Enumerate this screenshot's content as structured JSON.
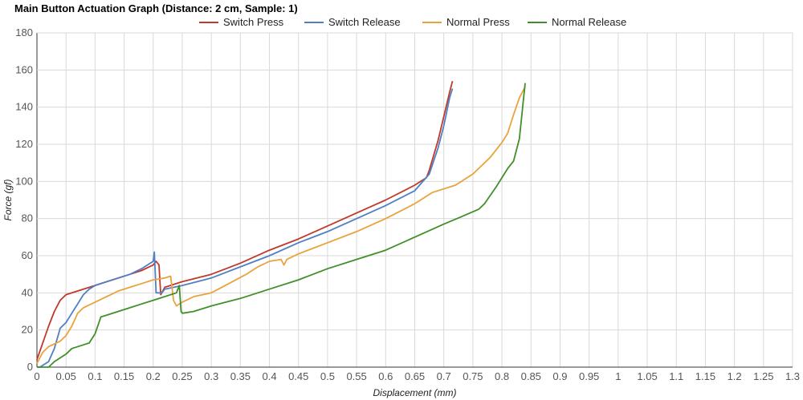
{
  "chart_data": {
    "type": "line",
    "title": "Main Button Actuation Graph (Distance: 2 cm, Sample: 1)",
    "xlabel": "Displacement (mm)",
    "ylabel": "Force (gf)",
    "xlim": [
      0,
      1.3
    ],
    "ylim": [
      0,
      180
    ],
    "x_ticks": [
      0,
      0.05,
      0.1,
      0.15,
      0.2,
      0.25,
      0.3,
      0.35,
      0.4,
      0.45,
      0.5,
      0.55,
      0.6,
      0.65,
      0.7,
      0.75,
      0.8,
      0.85,
      0.9,
      0.95,
      1.0,
      1.05,
      1.1,
      1.15,
      1.2,
      1.25,
      1.3
    ],
    "y_ticks": [
      0,
      20,
      40,
      60,
      80,
      100,
      120,
      140,
      160,
      180
    ],
    "grid": true,
    "legend_position": "top",
    "series": [
      {
        "name": "Switch Press",
        "color": "#c0392b",
        "points": [
          [
            0.0,
            4
          ],
          [
            0.01,
            13
          ],
          [
            0.02,
            22
          ],
          [
            0.03,
            30
          ],
          [
            0.04,
            36
          ],
          [
            0.05,
            39
          ],
          [
            0.07,
            41
          ],
          [
            0.1,
            44
          ],
          [
            0.13,
            47
          ],
          [
            0.16,
            50
          ],
          [
            0.18,
            52
          ],
          [
            0.2,
            55
          ],
          [
            0.205,
            57
          ],
          [
            0.21,
            55
          ],
          [
            0.212,
            44
          ],
          [
            0.213,
            39
          ],
          [
            0.22,
            43
          ],
          [
            0.25,
            46
          ],
          [
            0.3,
            50
          ],
          [
            0.35,
            56
          ],
          [
            0.4,
            63
          ],
          [
            0.45,
            69
          ],
          [
            0.5,
            76
          ],
          [
            0.55,
            83
          ],
          [
            0.6,
            90
          ],
          [
            0.65,
            98
          ],
          [
            0.67,
            102
          ],
          [
            0.675,
            106
          ],
          [
            0.69,
            122
          ],
          [
            0.7,
            135
          ],
          [
            0.71,
            148
          ],
          [
            0.715,
            154
          ]
        ]
      },
      {
        "name": "Switch Release",
        "color": "#4f7fc4",
        "points": [
          [
            0.0,
            0
          ],
          [
            0.005,
            0
          ],
          [
            0.01,
            1
          ],
          [
            0.02,
            3
          ],
          [
            0.03,
            10
          ],
          [
            0.04,
            21
          ],
          [
            0.05,
            24
          ],
          [
            0.06,
            29
          ],
          [
            0.07,
            34
          ],
          [
            0.08,
            39
          ],
          [
            0.09,
            42
          ],
          [
            0.1,
            44
          ],
          [
            0.12,
            46
          ],
          [
            0.14,
            48
          ],
          [
            0.16,
            50
          ],
          [
            0.18,
            53
          ],
          [
            0.195,
            56
          ],
          [
            0.2,
            57
          ],
          [
            0.202,
            62
          ],
          [
            0.205,
            40
          ],
          [
            0.215,
            40
          ],
          [
            0.22,
            42
          ],
          [
            0.25,
            44
          ],
          [
            0.3,
            48
          ],
          [
            0.35,
            54
          ],
          [
            0.4,
            60
          ],
          [
            0.45,
            67
          ],
          [
            0.5,
            73
          ],
          [
            0.55,
            80
          ],
          [
            0.6,
            87
          ],
          [
            0.65,
            95
          ],
          [
            0.675,
            104
          ],
          [
            0.69,
            118
          ],
          [
            0.7,
            130
          ],
          [
            0.71,
            145
          ],
          [
            0.715,
            150
          ]
        ]
      },
      {
        "name": "Normal Press",
        "color": "#e8a33d",
        "points": [
          [
            0.0,
            2
          ],
          [
            0.01,
            8
          ],
          [
            0.02,
            11
          ],
          [
            0.04,
            14
          ],
          [
            0.05,
            17
          ],
          [
            0.06,
            22
          ],
          [
            0.07,
            29
          ],
          [
            0.08,
            32
          ],
          [
            0.1,
            35
          ],
          [
            0.12,
            38
          ],
          [
            0.14,
            41
          ],
          [
            0.16,
            43
          ],
          [
            0.18,
            45
          ],
          [
            0.2,
            47
          ],
          [
            0.22,
            48
          ],
          [
            0.23,
            49
          ],
          [
            0.235,
            36
          ],
          [
            0.24,
            33
          ],
          [
            0.25,
            35
          ],
          [
            0.27,
            38
          ],
          [
            0.3,
            40
          ],
          [
            0.33,
            45
          ],
          [
            0.36,
            50
          ],
          [
            0.38,
            54
          ],
          [
            0.4,
            57
          ],
          [
            0.42,
            58
          ],
          [
            0.425,
            55
          ],
          [
            0.43,
            58
          ],
          [
            0.45,
            61
          ],
          [
            0.5,
            67
          ],
          [
            0.55,
            73
          ],
          [
            0.6,
            80
          ],
          [
            0.65,
            88
          ],
          [
            0.68,
            94
          ],
          [
            0.72,
            98
          ],
          [
            0.75,
            104
          ],
          [
            0.78,
            113
          ],
          [
            0.8,
            121
          ],
          [
            0.81,
            126
          ],
          [
            0.82,
            136
          ],
          [
            0.83,
            145
          ],
          [
            0.84,
            151
          ]
        ]
      },
      {
        "name": "Normal Release",
        "color": "#3f8f2b",
        "points": [
          [
            0.0,
            0
          ],
          [
            0.02,
            0
          ],
          [
            0.03,
            3
          ],
          [
            0.05,
            7
          ],
          [
            0.06,
            10
          ],
          [
            0.08,
            12
          ],
          [
            0.09,
            13
          ],
          [
            0.1,
            18
          ],
          [
            0.11,
            27
          ],
          [
            0.12,
            28
          ],
          [
            0.14,
            30
          ],
          [
            0.16,
            32
          ],
          [
            0.18,
            34
          ],
          [
            0.2,
            36
          ],
          [
            0.22,
            38
          ],
          [
            0.24,
            40
          ],
          [
            0.245,
            44
          ],
          [
            0.248,
            30
          ],
          [
            0.25,
            29
          ],
          [
            0.27,
            30
          ],
          [
            0.3,
            33
          ],
          [
            0.35,
            37
          ],
          [
            0.4,
            42
          ],
          [
            0.45,
            47
          ],
          [
            0.5,
            53
          ],
          [
            0.55,
            58
          ],
          [
            0.6,
            63
          ],
          [
            0.65,
            70
          ],
          [
            0.7,
            77
          ],
          [
            0.73,
            81
          ],
          [
            0.76,
            85
          ],
          [
            0.77,
            88
          ],
          [
            0.79,
            97
          ],
          [
            0.81,
            107
          ],
          [
            0.82,
            111
          ],
          [
            0.83,
            123
          ],
          [
            0.835,
            138
          ],
          [
            0.84,
            153
          ]
        ]
      }
    ]
  }
}
